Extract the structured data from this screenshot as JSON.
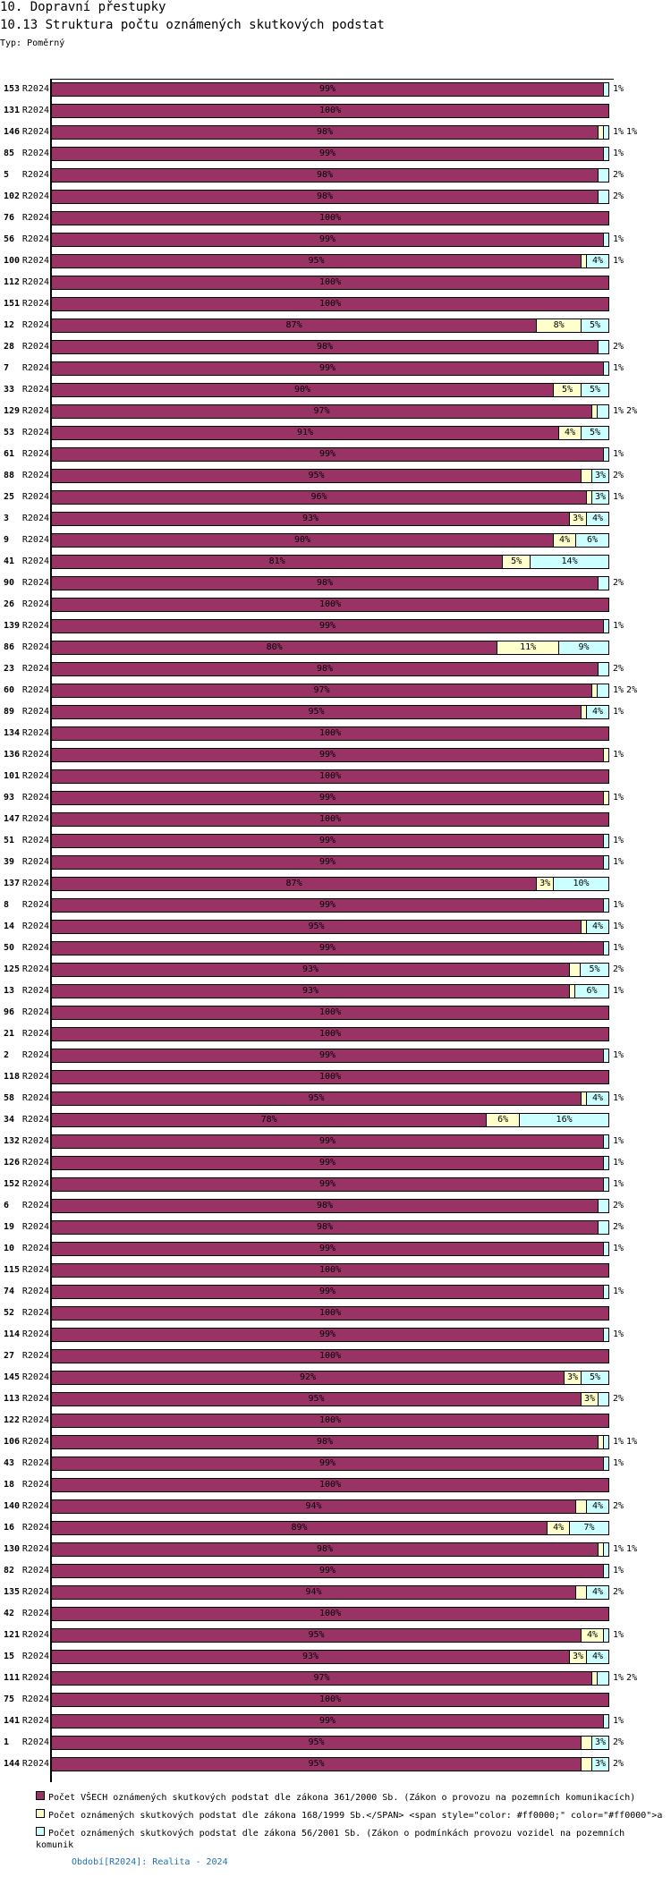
{
  "header": {
    "section": "10. Dopravní přestupky",
    "title": "10.13 Struktura počtu oznámených skutkových podstat",
    "type_label": "Typ: Poměrný"
  },
  "chart_data": {
    "type": "bar",
    "orientation": "horizontal",
    "stacked": true,
    "percent": true,
    "xlim": [
      0,
      100
    ],
    "period": "R2024",
    "colors": [
      "#993366",
      "#ffffcc",
      "#ccffff"
    ],
    "legend": [
      "Počet VŠECH oznámených skutkových podstat dle zákona 361/2000 Sb. (Zákon o provozu na pozemních komunikacích)",
      "Počet oznámených skutkových podstat dle zákona 168/1999 Sb.</SPAN> <span style=\"color: #ff0000;\" color=\"#ff0000\">a",
      "Počet oznámených skutkových podstat dle zákona 56/2001 Sb. (Zákon o podmínkách provozu vozidel na pozemních komunik"
    ],
    "categories": [
      "153",
      "131",
      "146",
      "85",
      "5",
      "102",
      "76",
      "56",
      "100",
      "112",
      "151",
      "12",
      "28",
      "7",
      "33",
      "129",
      "53",
      "61",
      "88",
      "25",
      "3",
      "9",
      "41",
      "90",
      "26",
      "139",
      "86",
      "23",
      "60",
      "89",
      "134",
      "136",
      "101",
      "93",
      "147",
      "51",
      "39",
      "137",
      "8",
      "14",
      "50",
      "125",
      "13",
      "96",
      "21",
      "2",
      "118",
      "58",
      "34",
      "132",
      "126",
      "152",
      "6",
      "19",
      "10",
      "115",
      "74",
      "52",
      "114",
      "27",
      "145",
      "113",
      "122",
      "106",
      "43",
      "18",
      "140",
      "16",
      "130",
      "82",
      "135",
      "42",
      "121",
      "15",
      "111",
      "75",
      "141",
      "1",
      "144"
    ],
    "values": [
      [
        99,
        0,
        1
      ],
      [
        100,
        0,
        0
      ],
      [
        98,
        1,
        1
      ],
      [
        99,
        0,
        1
      ],
      [
        98,
        0,
        2
      ],
      [
        98,
        0,
        2
      ],
      [
        100,
        0,
        0
      ],
      [
        99,
        0,
        1
      ],
      [
        95,
        1,
        4
      ],
      [
        100,
        0,
        0
      ],
      [
        100,
        0,
        0
      ],
      [
        87,
        8,
        5
      ],
      [
        98,
        0,
        2
      ],
      [
        99,
        0,
        1
      ],
      [
        90,
        5,
        5
      ],
      [
        97,
        1,
        2
      ],
      [
        91,
        4,
        5
      ],
      [
        99,
        0,
        1
      ],
      [
        95,
        2,
        3
      ],
      [
        96,
        1,
        3
      ],
      [
        93,
        3,
        4
      ],
      [
        90,
        4,
        6
      ],
      [
        81,
        5,
        14
      ],
      [
        98,
        0,
        2
      ],
      [
        100,
        0,
        0
      ],
      [
        99,
        0,
        1
      ],
      [
        80,
        11,
        9
      ],
      [
        98,
        0,
        2
      ],
      [
        97,
        1,
        2
      ],
      [
        95,
        1,
        4
      ],
      [
        100,
        0,
        0
      ],
      [
        99,
        1,
        0
      ],
      [
        100,
        0,
        0
      ],
      [
        99,
        1,
        0
      ],
      [
        100,
        0,
        0
      ],
      [
        99,
        0,
        1
      ],
      [
        99,
        0,
        1
      ],
      [
        87,
        3,
        10
      ],
      [
        99,
        0,
        1
      ],
      [
        95,
        1,
        4
      ],
      [
        99,
        0,
        1
      ],
      [
        93,
        2,
        5
      ],
      [
        93,
        1,
        6
      ],
      [
        100,
        0,
        0
      ],
      [
        100,
        0,
        0
      ],
      [
        99,
        0,
        1
      ],
      [
        100,
        0,
        0
      ],
      [
        95,
        1,
        4
      ],
      [
        78,
        6,
        16
      ],
      [
        99,
        0,
        1
      ],
      [
        99,
        0,
        1
      ],
      [
        99,
        0,
        1
      ],
      [
        98,
        0,
        2
      ],
      [
        98,
        0,
        2
      ],
      [
        99,
        0,
        1
      ],
      [
        100,
        0,
        0
      ],
      [
        99,
        0,
        1
      ],
      [
        100,
        0,
        0
      ],
      [
        99,
        0,
        1
      ],
      [
        100,
        0,
        0
      ],
      [
        92,
        3,
        5
      ],
      [
        95,
        3,
        2
      ],
      [
        100,
        0,
        0
      ],
      [
        98,
        1,
        1
      ],
      [
        99,
        0,
        1
      ],
      [
        100,
        0,
        0
      ],
      [
        94,
        2,
        4
      ],
      [
        89,
        4,
        7
      ],
      [
        98,
        1,
        1
      ],
      [
        99,
        0,
        1
      ],
      [
        94,
        2,
        4
      ],
      [
        100,
        0,
        0
      ],
      [
        95,
        4,
        1
      ],
      [
        93,
        3,
        4
      ],
      [
        97,
        1,
        2
      ],
      [
        100,
        0,
        0
      ],
      [
        99,
        0,
        1
      ],
      [
        95,
        2,
        3
      ],
      [
        95,
        2,
        3
      ]
    ]
  },
  "footer": {
    "period_link": "Období[R2024]: Realita - 2024"
  }
}
